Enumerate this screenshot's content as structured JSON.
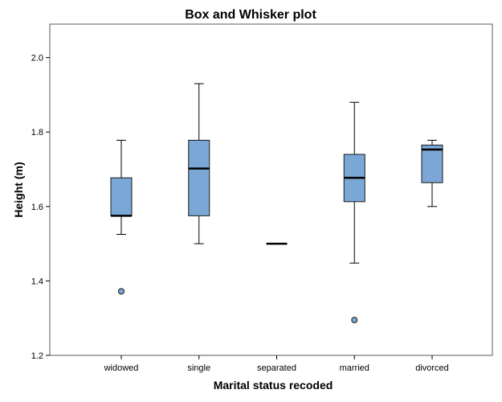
{
  "chart_data": {
    "type": "boxplot",
    "title": "Box and Whisker plot",
    "xlabel": "Marital status recoded",
    "ylabel": "Height (m)",
    "ylim": [
      1.2,
      2.09
    ],
    "yticks": [
      1.2,
      1.4,
      1.6,
      1.8,
      2.0
    ],
    "ytick_labels": [
      "1.2",
      "1.4",
      "1.6",
      "1.8",
      "2.0"
    ],
    "categories": [
      "widowed",
      "single",
      "separated",
      "married",
      "divorced"
    ],
    "boxes": [
      {
        "category": "widowed",
        "min": 1.525,
        "q1": 1.575,
        "median": 1.575,
        "q3": 1.677,
        "max": 1.778,
        "outliers": [
          1.372
        ]
      },
      {
        "category": "single",
        "min": 1.5,
        "q1": 1.575,
        "median": 1.702,
        "q3": 1.778,
        "max": 1.93,
        "outliers": []
      },
      {
        "category": "separated",
        "min": 1.5,
        "q1": 1.5,
        "median": 1.5,
        "q3": 1.5,
        "max": 1.5,
        "outliers": []
      },
      {
        "category": "married",
        "min": 1.448,
        "q1": 1.613,
        "median": 1.677,
        "q3": 1.74,
        "max": 1.88,
        "outliers": [
          1.295
        ]
      },
      {
        "category": "divorced",
        "min": 1.6,
        "q1": 1.664,
        "median": 1.753,
        "q3": 1.765,
        "max": 1.778,
        "outliers": []
      }
    ],
    "colors": {
      "box_fill": "#7ba7d6",
      "box_stroke": "#1a1a1a",
      "median": "#000000",
      "plot_border": "#5a5a5a",
      "background": "#ffffff"
    }
  }
}
